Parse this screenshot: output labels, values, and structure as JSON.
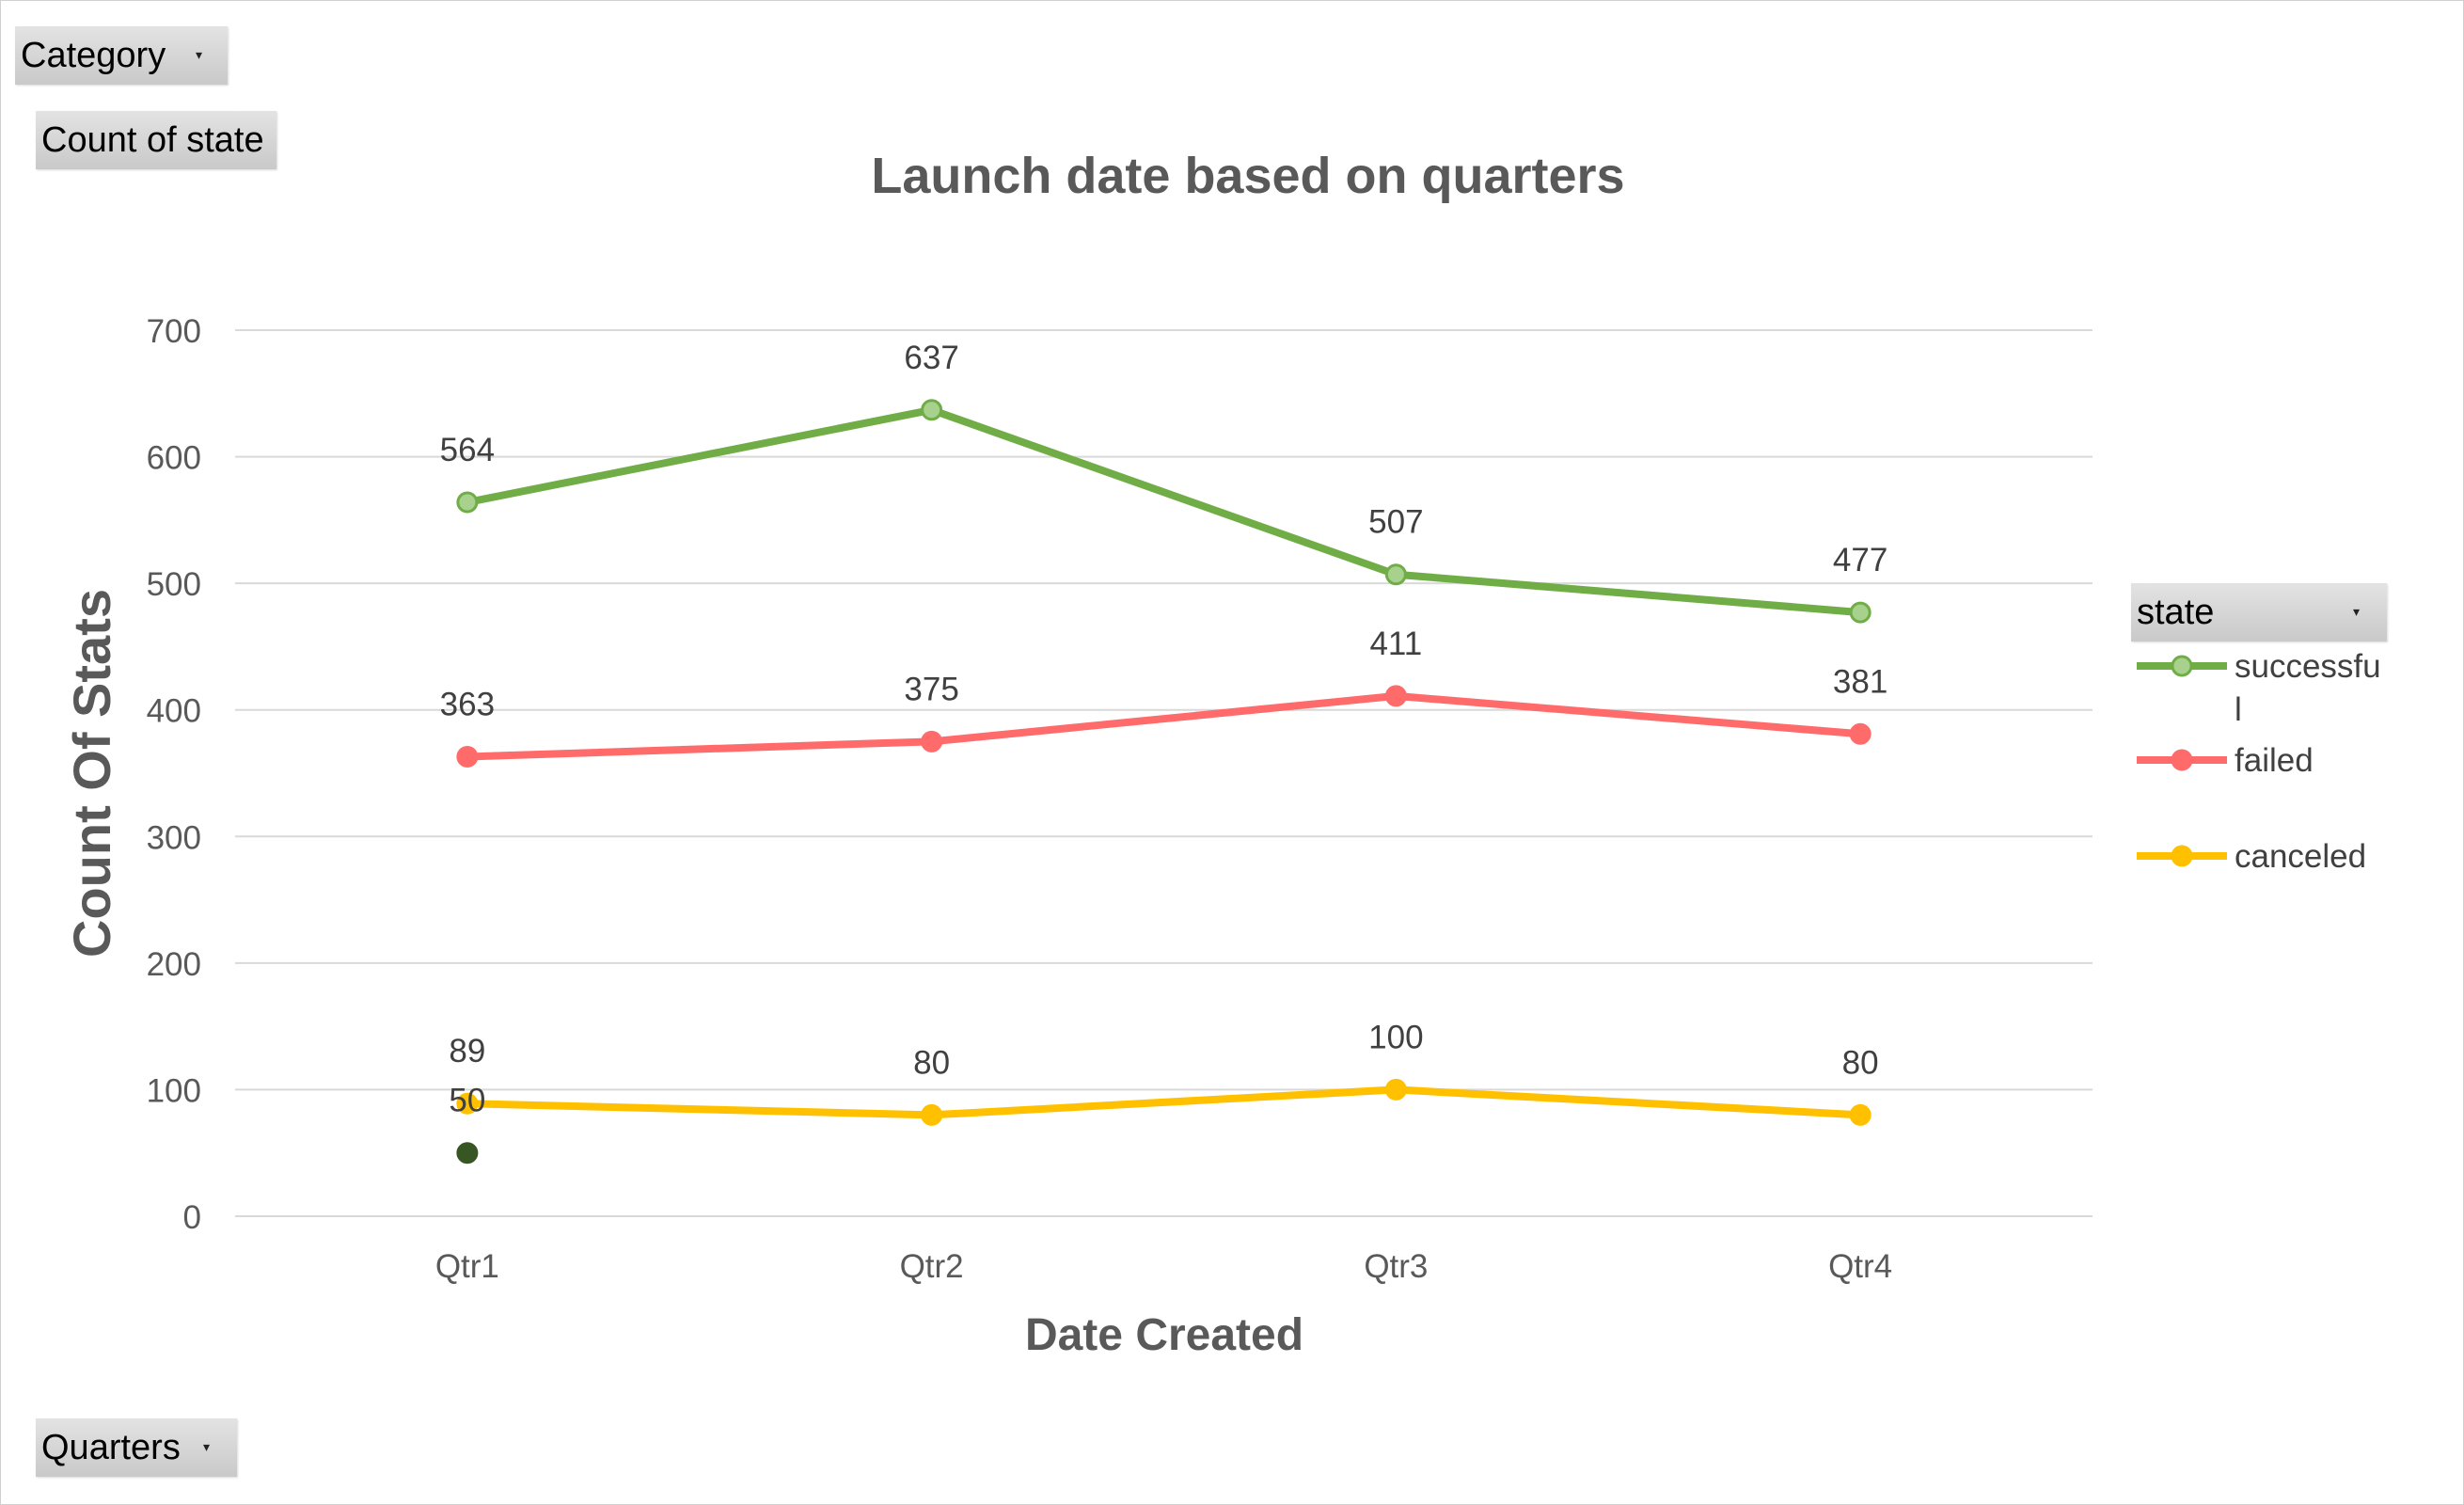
{
  "pivot_fields": {
    "category_label": "Category",
    "value_label": "Count of state",
    "axis_label": "Quarters",
    "legend_field_label": "state"
  },
  "icons": {
    "dropdown": "chevron-down-icon"
  },
  "chart_data": {
    "type": "line",
    "title": "Launch date  based on quarters",
    "xlabel": "Date Created",
    "ylabel": "Count Of Stats",
    "categories": [
      "Qtr1",
      "Qtr2",
      "Qtr3",
      "Qtr4"
    ],
    "ylim": [
      0,
      700
    ],
    "yticks": [
      0,
      100,
      200,
      300,
      400,
      500,
      600,
      700
    ],
    "grid": true,
    "legend_position": "right",
    "series": [
      {
        "name": "successful",
        "values": [
          564,
          637,
          507,
          477
        ],
        "color": "#70ad47",
        "marker_fill": "#a9d18e"
      },
      {
        "name": "failed",
        "values": [
          363,
          375,
          411,
          381
        ],
        "color": "#ff6b6b",
        "marker_fill": "#ff6b6b"
      },
      {
        "name": "canceled",
        "values": [
          89,
          80,
          100,
          80
        ],
        "color": "#ffc000",
        "marker_fill": "#ffc000"
      },
      {
        "name": "",
        "values": [
          50,
          null,
          null,
          null
        ],
        "color": "#375623",
        "marker_fill": "#375623"
      }
    ],
    "legend_entries": [
      {
        "text": "successfu",
        "text_wrap": "l",
        "series": 0
      },
      {
        "text": "failed",
        "series": 1
      },
      {
        "text": "canceled",
        "series": 2
      }
    ]
  }
}
